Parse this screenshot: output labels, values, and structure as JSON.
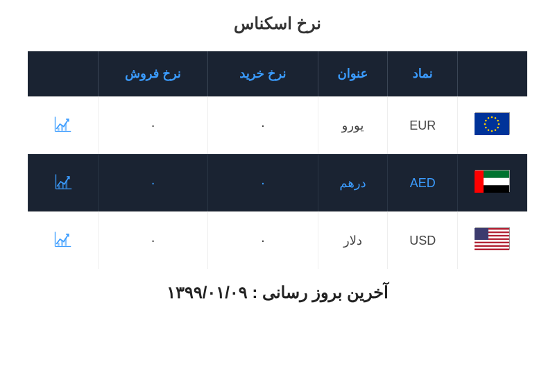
{
  "title": "نرخ اسکناس",
  "headers": {
    "symbol": "نماد",
    "name": "عنوان",
    "buy": "نرخ خرید",
    "sell": "نرخ فروش"
  },
  "rows": [
    {
      "code": "EUR",
      "name": "یورو",
      "buy": "۰",
      "sell": "۰",
      "flag": "eu",
      "variant": "light"
    },
    {
      "code": "AED",
      "name": "درهم",
      "buy": "۰",
      "sell": "۰",
      "flag": "ae",
      "variant": "dark"
    },
    {
      "code": "USD",
      "name": "دلار",
      "buy": "۰",
      "sell": "۰",
      "flag": "us",
      "variant": "light"
    }
  ],
  "lastUpdate": "آخرین بروز رسانی : ۱۳۹۹/۰۱/۰۹",
  "colors": {
    "header_bg": "#1a2332",
    "accent": "#3b9cff",
    "chart_stroke": "#3b9cff"
  }
}
